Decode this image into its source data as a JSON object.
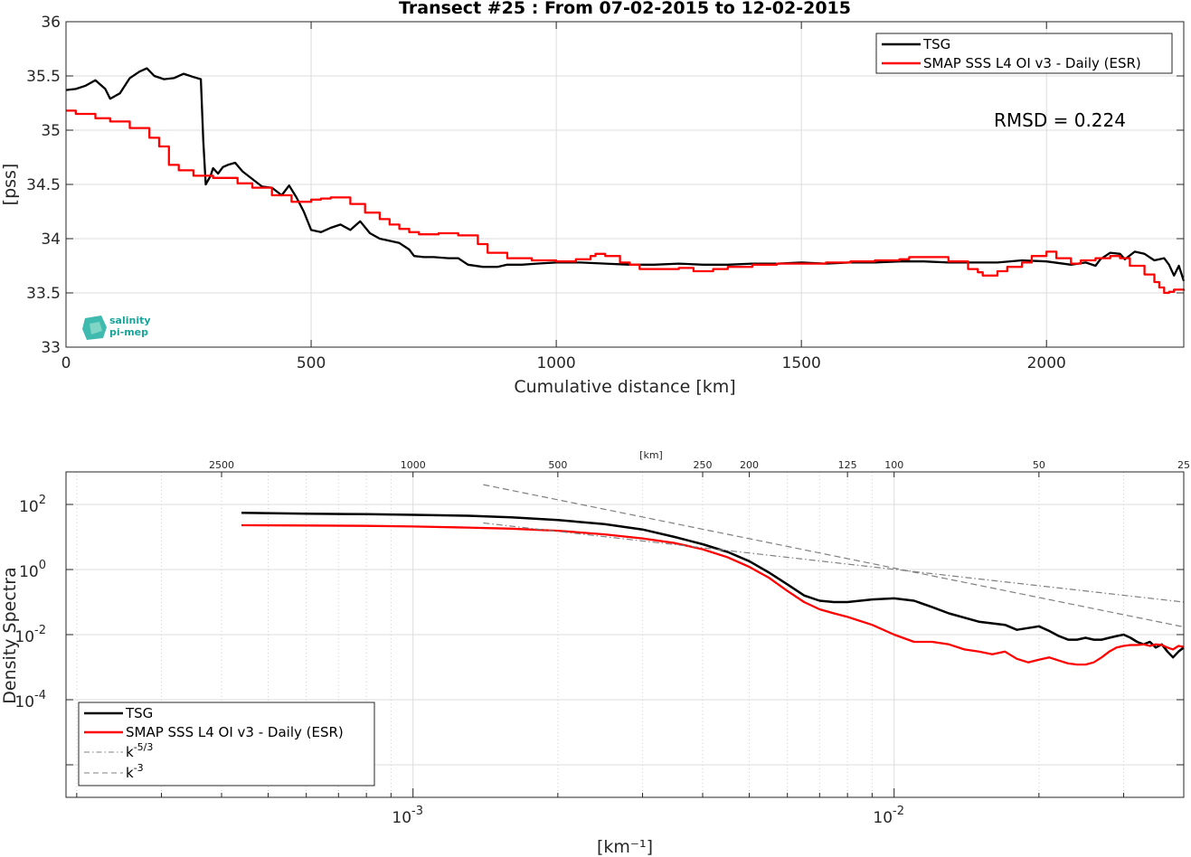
{
  "chart_data": [
    {
      "type": "line",
      "title": "Transect #25 : From 07-02-2015 to 12-02-2015",
      "xlabel": "Cumulative distance [km]",
      "ylabel": "[pss]",
      "xlim": [
        0,
        2280
      ],
      "ylim": [
        33,
        36
      ],
      "xticks": [
        "0",
        "500",
        "1000",
        "1500",
        "2000"
      ],
      "yticks": [
        "33",
        "33.5",
        "34",
        "34.5",
        "35",
        "35.5",
        "36"
      ],
      "grid": true,
      "legend_position": "top-right",
      "annotation": "RMSD = 0.224",
      "logo_text": [
        "salinity",
        "pi-mep"
      ],
      "series": [
        {
          "name": "TSG",
          "color": "#000000",
          "x": [
            0,
            20,
            40,
            60,
            80,
            90,
            110,
            130,
            150,
            165,
            180,
            200,
            220,
            240,
            260,
            275,
            280,
            285,
            295,
            300,
            310,
            320,
            330,
            345,
            360,
            380,
            400,
            420,
            440,
            455,
            470,
            485,
            500,
            520,
            540,
            560,
            580,
            600,
            620,
            640,
            660,
            680,
            700,
            710,
            730,
            750,
            780,
            800,
            820,
            850,
            880,
            900,
            930,
            960,
            1000,
            1050,
            1100,
            1150,
            1200,
            1250,
            1300,
            1350,
            1400,
            1450,
            1500,
            1550,
            1600,
            1650,
            1700,
            1750,
            1800,
            1850,
            1900,
            1950,
            2000,
            2050,
            2080,
            2100,
            2110,
            2130,
            2150,
            2160,
            2180,
            2200,
            2220,
            2240,
            2250,
            2260,
            2270,
            2280
          ],
          "values": [
            35.37,
            35.38,
            35.41,
            35.46,
            35.38,
            35.29,
            35.34,
            35.48,
            35.54,
            35.57,
            35.5,
            35.47,
            35.48,
            35.52,
            35.49,
            35.47,
            34.9,
            34.5,
            34.58,
            34.65,
            34.6,
            34.66,
            34.68,
            34.7,
            34.62,
            34.55,
            34.48,
            34.47,
            34.4,
            34.49,
            34.38,
            34.25,
            34.08,
            34.06,
            34.1,
            34.13,
            34.08,
            34.16,
            34.05,
            34.0,
            33.98,
            33.96,
            33.9,
            33.84,
            33.83,
            33.83,
            33.82,
            33.82,
            33.76,
            33.74,
            33.74,
            33.76,
            33.76,
            33.77,
            33.78,
            33.78,
            33.77,
            33.76,
            33.76,
            33.77,
            33.76,
            33.76,
            33.77,
            33.77,
            33.78,
            33.77,
            33.78,
            33.78,
            33.79,
            33.79,
            33.78,
            33.78,
            33.78,
            33.8,
            33.79,
            33.76,
            33.78,
            33.75,
            33.81,
            33.87,
            33.86,
            33.81,
            33.88,
            33.86,
            33.8,
            33.82,
            33.76,
            33.66,
            33.75,
            33.61
          ]
        },
        {
          "name": "SMAP SSS L4 OI v3 - Daily (ESR)",
          "color": "#ff0000",
          "x": [
            0,
            20,
            60,
            90,
            130,
            170,
            190,
            210,
            230,
            260,
            300,
            350,
            380,
            420,
            460,
            500,
            520,
            540,
            580,
            610,
            640,
            660,
            680,
            700,
            720,
            760,
            800,
            840,
            860,
            900,
            950,
            1000,
            1040,
            1070,
            1080,
            1100,
            1130,
            1150,
            1170,
            1200,
            1250,
            1280,
            1320,
            1350,
            1400,
            1450,
            1500,
            1550,
            1600,
            1650,
            1700,
            1720,
            1750,
            1800,
            1840,
            1860,
            1870,
            1900,
            1920,
            1950,
            1970,
            2000,
            2020,
            2050,
            2070,
            2100,
            2130,
            2150,
            2170,
            2200,
            2220,
            2230,
            2240,
            2250,
            2260,
            2280
          ],
          "values": [
            35.18,
            35.15,
            35.11,
            35.08,
            35.02,
            34.93,
            34.85,
            34.68,
            34.63,
            34.58,
            34.56,
            34.51,
            34.47,
            34.4,
            34.34,
            34.36,
            34.37,
            34.38,
            34.32,
            34.24,
            34.18,
            34.13,
            34.09,
            34.06,
            34.04,
            34.05,
            34.03,
            33.95,
            33.87,
            33.82,
            33.8,
            33.79,
            33.81,
            33.84,
            33.86,
            33.84,
            33.78,
            33.76,
            33.72,
            33.72,
            33.73,
            33.7,
            33.72,
            33.74,
            33.76,
            33.77,
            33.77,
            33.78,
            33.79,
            33.8,
            33.81,
            33.83,
            33.83,
            33.79,
            33.72,
            33.69,
            33.66,
            33.7,
            33.74,
            33.78,
            33.84,
            33.88,
            33.82,
            33.77,
            33.8,
            33.82,
            33.84,
            33.82,
            33.75,
            33.67,
            33.6,
            33.55,
            33.5,
            33.51,
            33.53,
            33.52
          ]
        }
      ]
    },
    {
      "type": "line",
      "title": "",
      "xlabel": "[km⁻¹]",
      "ylabel": "Density Spectra",
      "x_scale": "log",
      "y_scale": "log",
      "xlim": [
        0.00019,
        0.04
      ],
      "ylim": [
        1e-07,
        1000
      ],
      "xtick_labels": [
        {
          "base": "10",
          "exp": "-3"
        },
        {
          "base": "10",
          "exp": "-2"
        }
      ],
      "ytick_labels": [
        {
          "base": "10",
          "exp": "-4"
        },
        {
          "base": "10",
          "exp": "-2"
        },
        {
          "base": "10",
          "exp": "0"
        },
        {
          "base": "10",
          "exp": "2"
        }
      ],
      "top_axis_label": "[km]",
      "top_ticks": [
        "2500",
        "1000",
        "500",
        "250",
        "200",
        "125",
        "100",
        "50",
        "25"
      ],
      "grid": true,
      "legend_position": "bottom-left",
      "series": [
        {
          "name": "TSG",
          "color": "#000000",
          "x": [
            0.00044,
            0.0006,
            0.0008,
            0.001,
            0.0013,
            0.0016,
            0.002,
            0.0025,
            0.003,
            0.0035,
            0.004,
            0.0045,
            0.005,
            0.0055,
            0.006,
            0.0065,
            0.007,
            0.0075,
            0.008,
            0.009,
            0.01,
            0.011,
            0.012,
            0.013,
            0.015,
            0.017,
            0.018,
            0.019,
            0.02,
            0.021,
            0.022,
            0.023,
            0.024,
            0.025,
            0.026,
            0.027,
            0.028,
            0.029,
            0.03,
            0.031,
            0.032,
            0.033,
            0.034,
            0.035,
            0.036,
            0.037,
            0.038,
            0.039,
            0.04
          ],
          "values": [
            55,
            52,
            50,
            48,
            45,
            40,
            33,
            25,
            17,
            10,
            6,
            3.5,
            1.8,
            0.8,
            0.35,
            0.16,
            0.11,
            0.1,
            0.1,
            0.12,
            0.13,
            0.11,
            0.07,
            0.045,
            0.025,
            0.02,
            0.014,
            0.016,
            0.018,
            0.013,
            0.009,
            0.007,
            0.007,
            0.008,
            0.007,
            0.007,
            0.008,
            0.009,
            0.01,
            0.008,
            0.006,
            0.005,
            0.006,
            0.004,
            0.005,
            0.003,
            0.002,
            0.003,
            0.004
          ]
        },
        {
          "name": "SMAP SSS L4 OI v3 - Daily (ESR)",
          "color": "#ff0000",
          "x": [
            0.00044,
            0.0006,
            0.0008,
            0.001,
            0.0013,
            0.0016,
            0.002,
            0.0025,
            0.003,
            0.0035,
            0.004,
            0.0045,
            0.005,
            0.0055,
            0.006,
            0.0065,
            0.007,
            0.0075,
            0.008,
            0.009,
            0.01,
            0.011,
            0.012,
            0.013,
            0.014,
            0.015,
            0.016,
            0.017,
            0.018,
            0.019,
            0.02,
            0.021,
            0.022,
            0.023,
            0.024,
            0.025,
            0.026,
            0.027,
            0.028,
            0.029,
            0.03,
            0.031,
            0.032,
            0.033,
            0.034,
            0.035,
            0.036,
            0.037,
            0.038,
            0.039,
            0.04
          ],
          "values": [
            23,
            22.5,
            22,
            21,
            19.5,
            18,
            15.5,
            12,
            9,
            6.5,
            4.2,
            2.4,
            1.2,
            0.55,
            0.22,
            0.1,
            0.06,
            0.045,
            0.035,
            0.02,
            0.01,
            0.006,
            0.006,
            0.005,
            0.0035,
            0.003,
            0.0025,
            0.003,
            0.0018,
            0.0014,
            0.0017,
            0.002,
            0.0016,
            0.0013,
            0.0012,
            0.0012,
            0.0014,
            0.002,
            0.003,
            0.004,
            0.0045,
            0.0048,
            0.0048,
            0.005,
            0.0045,
            0.005,
            0.0048,
            0.004,
            0.0035,
            0.0045,
            0.0042
          ]
        },
        {
          "name": "k^-5/3",
          "color": "#808080",
          "x": [
            0.0014,
            0.04
          ],
          "values": [
            26.9,
            0.1
          ]
        },
        {
          "name": "k^-3",
          "color": "#808080",
          "x": [
            0.0014,
            0.04
          ],
          "values": [
            407,
            0.0172
          ]
        }
      ]
    }
  ],
  "legend_top": {
    "items": [
      "TSG",
      "SMAP SSS L4 OI v3 - Daily (ESR)"
    ]
  },
  "legend_bottom": {
    "items": [
      "TSG",
      "SMAP SSS L4 OI v3 - Daily (ESR)"
    ],
    "k53": {
      "base": "k",
      "exp": "-5/3"
    },
    "k3": {
      "base": "k",
      "exp": "-3"
    }
  }
}
